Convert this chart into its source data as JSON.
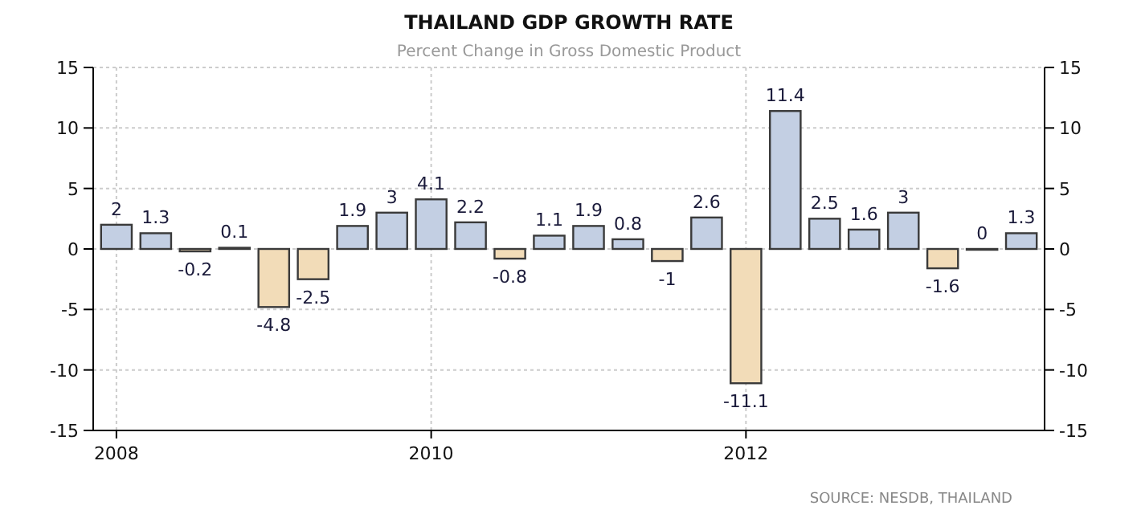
{
  "chart_data": {
    "type": "bar",
    "title": "THAILAND GDP GROWTH RATE",
    "subtitle": "Percent Change in Gross Domestic Product",
    "categories": [
      "2008",
      null,
      null,
      null,
      null,
      null,
      null,
      null,
      "2010",
      null,
      null,
      null,
      null,
      null,
      null,
      null,
      "2012",
      null,
      null,
      null,
      null,
      null,
      null,
      null
    ],
    "values": [
      2,
      1.3,
      -0.2,
      0.1,
      -4.8,
      -2.5,
      1.9,
      3,
      4.1,
      2.2,
      -0.8,
      1.1,
      1.9,
      0.8,
      -1,
      2.6,
      -11.1,
      11.4,
      2.5,
      1.6,
      3,
      -1.6,
      0,
      1.3
    ],
    "colors": [
      "#c3cfe3",
      "#c3cfe3",
      "#f2dcb8",
      "#c3cfe3",
      "#f2dcb8",
      "#f2dcb8",
      "#c3cfe3",
      "#c3cfe3",
      "#c3cfe3",
      "#c3cfe3",
      "#f2dcb8",
      "#c3cfe3",
      "#c3cfe3",
      "#c3cfe3",
      "#f2dcb8",
      "#c3cfe3",
      "#f2dcb8",
      "#c3cfe3",
      "#c3cfe3",
      "#c3cfe3",
      "#c3cfe3",
      "#f2dcb8",
      "#c3cfe3",
      "#c3cfe3"
    ],
    "ylim": [
      -15,
      15
    ],
    "yticks": [
      -15,
      -10,
      -5,
      0,
      5,
      10,
      15
    ],
    "y2lim": [
      -15,
      15
    ],
    "y2ticks": [
      -15,
      -10,
      -5,
      0,
      5,
      10,
      15
    ],
    "data_labels": true,
    "grid": true,
    "annotations": [
      "SOURCE: NESDB, THAILAND"
    ]
  }
}
